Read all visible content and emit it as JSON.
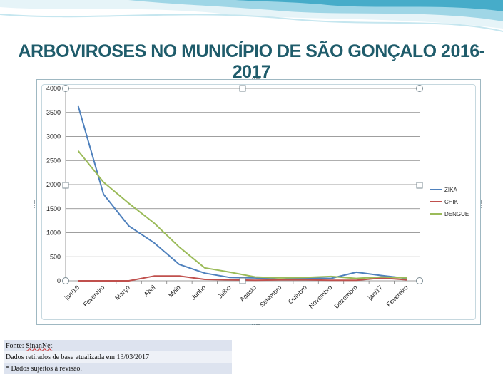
{
  "slide": {
    "title": "ARBOVIROSES NO MUNICÍPIO DE SÃO GONÇALO 2016-2017"
  },
  "colors": {
    "title": "#1f5c6b",
    "banner_light": "#cfeaf2",
    "banner_mid": "#8fcfe0",
    "banner_dark": "#3aa6c6",
    "grid": "#7f7f7f"
  },
  "chart_data": {
    "type": "line",
    "categories": [
      "jan/16",
      "Fevereiro",
      "Março",
      "Abril",
      "Maio",
      "Junho",
      "Julho",
      "Agosto",
      "Setembro",
      "Outubro",
      "Novembro",
      "Dezembro",
      "jan/17",
      "Fevereiro"
    ],
    "ylim": [
      0,
      4000
    ],
    "yticks": [
      0,
      500,
      1000,
      1500,
      2000,
      2500,
      3000,
      3500,
      4000
    ],
    "grid": true,
    "legend_position": "right",
    "series": [
      {
        "name": "ZIKA",
        "color": "#4f81bd",
        "values": [
          3630,
          1800,
          1140,
          790,
          340,
          160,
          70,
          60,
          30,
          60,
          50,
          180,
          110,
          50
        ]
      },
      {
        "name": "CHIK",
        "color": "#c0504d",
        "values": [
          0,
          0,
          0,
          100,
          100,
          30,
          20,
          10,
          20,
          20,
          10,
          10,
          60,
          20
        ]
      },
      {
        "name": "DENGUE",
        "color": "#9bbb59",
        "values": [
          2700,
          2050,
          1610,
          1200,
          700,
          270,
          180,
          80,
          60,
          70,
          90,
          50,
          80,
          60
        ]
      }
    ]
  },
  "source": {
    "line1_prefix": "Fonte: ",
    "line1_name": "SinanNet",
    "line2": "Dados retirados de base atualizada em  13/03/2017",
    "line3": "* Dados sujeitos à revisão."
  }
}
